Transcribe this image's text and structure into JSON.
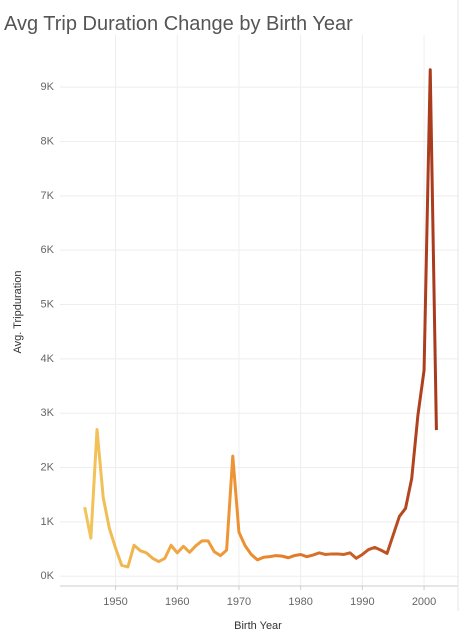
{
  "chart_data": {
    "type": "line",
    "title": "Avg Trip Duration Change by Birth Year",
    "x_label": "Birth Year",
    "y_label": "Avg. Tripduration",
    "x": [
      1945,
      1946,
      1947,
      1948,
      1949,
      1950,
      1951,
      1952,
      1953,
      1954,
      1955,
      1956,
      1957,
      1958,
      1959,
      1960,
      1961,
      1962,
      1963,
      1964,
      1965,
      1966,
      1967,
      1968,
      1969,
      1970,
      1971,
      1972,
      1973,
      1974,
      1975,
      1976,
      1977,
      1978,
      1979,
      1980,
      1981,
      1982,
      1983,
      1984,
      1985,
      1986,
      1987,
      1988,
      1989,
      1990,
      1991,
      1992,
      1993,
      1994,
      1995,
      1996,
      1997,
      1998,
      1999,
      2000,
      2001,
      2002
    ],
    "values": [
      1270,
      700,
      2700,
      1450,
      880,
      520,
      200,
      170,
      570,
      470,
      430,
      330,
      270,
      330,
      570,
      430,
      550,
      440,
      560,
      650,
      650,
      450,
      380,
      480,
      2210,
      810,
      560,
      400,
      300,
      350,
      360,
      380,
      370,
      340,
      380,
      400,
      360,
      390,
      430,
      400,
      410,
      410,
      400,
      430,
      330,
      400,
      490,
      530,
      480,
      420,
      760,
      1100,
      1250,
      1800,
      2960,
      3790,
      9320,
      2690
    ],
    "colors": [
      "#f2c55c",
      "#ec8a2d",
      "#a8391e"
    ],
    "xlim": [
      1941,
      2005.5
    ],
    "ylim": [
      -180,
      9960
    ],
    "xticks": [
      1950,
      1960,
      1970,
      1980,
      1990,
      2000
    ],
    "yticks": [
      {
        "value": 0,
        "label": "0K"
      },
      {
        "value": 1000,
        "label": "1K"
      },
      {
        "value": 2000,
        "label": "2K"
      },
      {
        "value": 3000,
        "label": "3K"
      },
      {
        "value": 4000,
        "label": "4K"
      },
      {
        "value": 5000,
        "label": "5K"
      },
      {
        "value": 6000,
        "label": "6K"
      },
      {
        "value": 7000,
        "label": "7K"
      },
      {
        "value": 8000,
        "label": "8K"
      },
      {
        "value": 9000,
        "label": "9K"
      }
    ],
    "grid": true
  }
}
